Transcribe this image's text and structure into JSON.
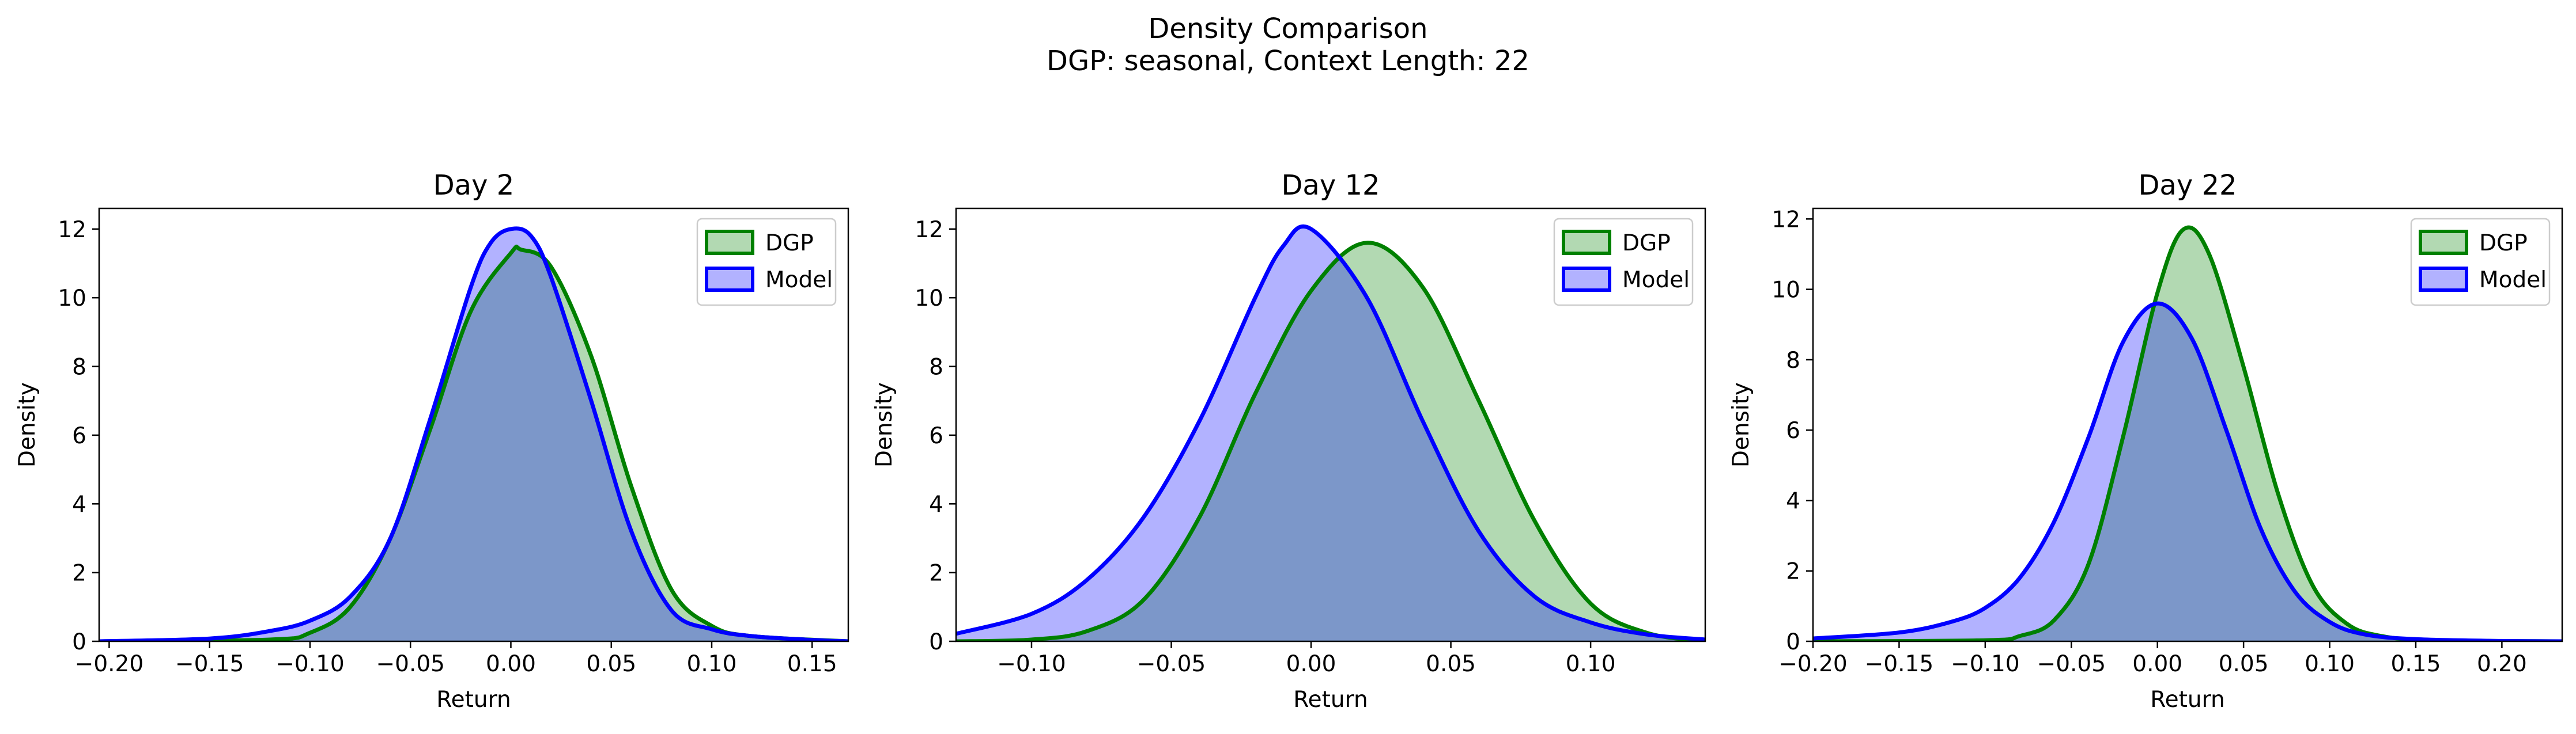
{
  "figure": {
    "suptitle_line1": "Density Comparison",
    "suptitle_line2": "DGP: seasonal, Context Length: 22"
  },
  "chart_data": [
    {
      "type": "area",
      "title": "Day 2",
      "xlabel": "Return",
      "ylabel": "Density",
      "xlim": [
        -0.205,
        0.168
      ],
      "ylim": [
        0,
        12.6
      ],
      "xticks": [
        -0.2,
        -0.15,
        -0.1,
        -0.05,
        0.0,
        0.05,
        0.1,
        0.15
      ],
      "xtick_labels": [
        "−0.20",
        "−0.15",
        "−0.10",
        "−0.05",
        "0.00",
        "0.05",
        "0.10",
        "0.15"
      ],
      "yticks": [
        0,
        2,
        4,
        6,
        8,
        10,
        12
      ],
      "ytick_labels": [
        "0",
        "2",
        "4",
        "6",
        "8",
        "10",
        "12"
      ],
      "legend": "top-right",
      "legend_entries": [
        "DGP",
        "Model"
      ],
      "series": [
        {
          "name": "DGP",
          "color": "#008000",
          "fill": "#b1dab1",
          "x": [
            -0.205,
            -0.12,
            -0.1,
            -0.08,
            -0.06,
            -0.04,
            -0.02,
            0.0,
            0.005,
            0.02,
            0.04,
            0.06,
            0.08,
            0.1,
            0.12,
            0.168
          ],
          "y": [
            0,
            0.05,
            0.25,
            1.0,
            3.0,
            6.2,
            9.6,
            11.3,
            11.4,
            10.9,
            8.3,
            4.5,
            1.5,
            0.45,
            0.15,
            0
          ]
        },
        {
          "name": "Model",
          "color": "#0000ff",
          "fill": "#b1b1ff",
          "x": [
            -0.205,
            -0.15,
            -0.12,
            -0.1,
            -0.08,
            -0.06,
            -0.04,
            -0.02,
            -0.01,
            0.0,
            0.01,
            0.02,
            0.04,
            0.06,
            0.08,
            0.1,
            0.12,
            0.15,
            0.168
          ],
          "y": [
            0,
            0.08,
            0.3,
            0.6,
            1.3,
            3.0,
            6.5,
            10.3,
            11.6,
            12.0,
            11.8,
            10.6,
            7.0,
            3.2,
            0.9,
            0.35,
            0.15,
            0.04,
            0
          ]
        }
      ]
    },
    {
      "type": "area",
      "title": "Day 12",
      "xlabel": "Return",
      "ylabel": "Density",
      "xlim": [
        -0.127,
        0.141
      ],
      "ylim": [
        0,
        12.6
      ],
      "xticks": [
        -0.1,
        -0.05,
        0.0,
        0.05,
        0.1
      ],
      "xtick_labels": [
        "−0.10",
        "−0.05",
        "0.00",
        "0.05",
        "0.10"
      ],
      "yticks": [
        0,
        2,
        4,
        6,
        8,
        10,
        12
      ],
      "ytick_labels": [
        "0",
        "2",
        "4",
        "6",
        "8",
        "10",
        "12"
      ],
      "legend": "top-right",
      "legend_entries": [
        "DGP",
        "Model"
      ],
      "series": [
        {
          "name": "DGP",
          "color": "#008000",
          "fill": "#b1dab1",
          "x": [
            -0.127,
            -0.1,
            -0.08,
            -0.06,
            -0.04,
            -0.02,
            0.0,
            0.02,
            0.04,
            0.06,
            0.08,
            0.1,
            0.12,
            0.141
          ],
          "y": [
            0,
            0.05,
            0.3,
            1.2,
            3.6,
            7.2,
            10.2,
            11.6,
            10.3,
            7.0,
            3.5,
            1.1,
            0.25,
            0
          ]
        },
        {
          "name": "Model",
          "color": "#0000ff",
          "fill": "#b1b1ff",
          "x": [
            -0.127,
            -0.1,
            -0.08,
            -0.06,
            -0.04,
            -0.02,
            -0.01,
            0.0,
            0.02,
            0.04,
            0.06,
            0.08,
            0.1,
            0.12,
            0.141
          ],
          "y": [
            0.22,
            0.8,
            1.8,
            3.6,
            6.4,
            10.0,
            11.5,
            12.0,
            10.0,
            6.4,
            3.2,
            1.3,
            0.55,
            0.2,
            0.05
          ]
        }
      ]
    },
    {
      "type": "area",
      "title": "Day 22",
      "xlabel": "Return",
      "ylabel": "Density",
      "xlim": [
        -0.2,
        0.235
      ],
      "ylim": [
        0,
        12.3
      ],
      "xticks": [
        -0.2,
        -0.15,
        -0.1,
        -0.05,
        0.0,
        0.05,
        0.1,
        0.15,
        0.2
      ],
      "xtick_labels": [
        "−0.20",
        "−0.15",
        "−0.10",
        "−0.05",
        "0.00",
        "0.05",
        "0.10",
        "0.15",
        "0.20"
      ],
      "yticks": [
        0,
        2,
        4,
        6,
        8,
        10,
        12
      ],
      "ytick_labels": [
        "0",
        "2",
        "4",
        "6",
        "8",
        "10",
        "12"
      ],
      "legend": "top-right",
      "legend_entries": [
        "DGP",
        "Model"
      ],
      "series": [
        {
          "name": "DGP",
          "color": "#008000",
          "fill": "#b1dab1",
          "x": [
            -0.2,
            -0.1,
            -0.08,
            -0.06,
            -0.04,
            -0.02,
            0.0,
            0.015,
            0.03,
            0.05,
            0.07,
            0.09,
            0.11,
            0.13,
            0.16,
            0.235
          ],
          "y": [
            0,
            0.03,
            0.15,
            0.6,
            2.2,
            5.8,
            9.9,
            11.7,
            11.0,
            7.8,
            4.2,
            1.6,
            0.5,
            0.15,
            0.03,
            0
          ]
        },
        {
          "name": "Model",
          "color": "#0000ff",
          "fill": "#b1b1ff",
          "x": [
            -0.2,
            -0.15,
            -0.12,
            -0.1,
            -0.08,
            -0.06,
            -0.04,
            -0.02,
            0.0,
            0.02,
            0.04,
            0.06,
            0.08,
            0.1,
            0.12,
            0.15,
            0.2,
            0.235
          ],
          "y": [
            0.08,
            0.25,
            0.55,
            0.95,
            1.8,
            3.4,
            5.8,
            8.5,
            9.6,
            8.6,
            6.0,
            3.2,
            1.4,
            0.55,
            0.2,
            0.06,
            0.01,
            0
          ]
        }
      ]
    }
  ]
}
